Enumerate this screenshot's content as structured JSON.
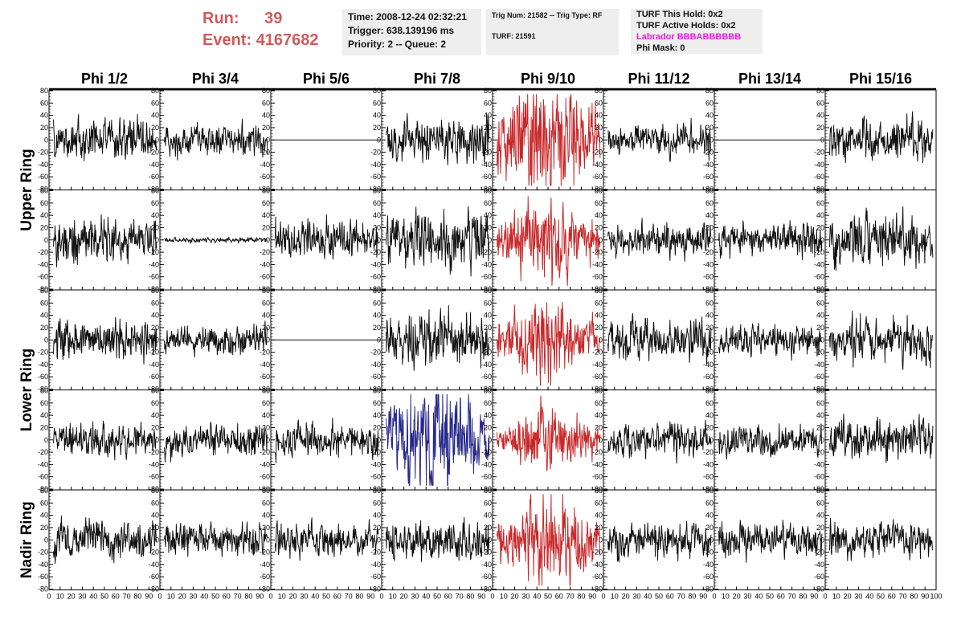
{
  "header": {
    "run_label": "Run:",
    "run_value": "39",
    "event_label": "Event:",
    "event_value": "4167682",
    "time_line": "Time: 2008-12-24 02:32:21",
    "trigger_line": "Trigger: 638.139196 ms",
    "priority_line": "Priority: 2 -- Queue: 2",
    "trig_line": "Trig Num: 21582 -- Trig Type: RF",
    "turf_line": "TURF: 21591",
    "turf_hold_line": "TURF This Hold: 0x2",
    "turf_active_line": "TURF Active Holds: 0x2",
    "labrador_line": "Labrador BBBABBBBBB",
    "phimask_line": "Phi Mask: 0"
  },
  "colors": {
    "trace_default": "#111111",
    "trace_red": "#c8282a",
    "trace_blue": "#28288c",
    "run_text": "#d05a5a",
    "labrador_text": "#e020e0",
    "info_box_bg": "#eeeeee"
  },
  "chart_data": {
    "type": "line",
    "columns": [
      "Phi 1/2",
      "Phi 3/4",
      "Phi 5/6",
      "Phi 7/8",
      "Phi 9/10",
      "Phi 11/12",
      "Phi 13/14",
      "Phi 15/16"
    ],
    "row_labels": [
      "Upper Ring",
      "Lower Ring",
      "Nadir Ring"
    ],
    "xlim": [
      0,
      100
    ],
    "ylim": [
      -80,
      80
    ],
    "x_ticks": [
      0,
      10,
      20,
      30,
      40,
      50,
      60,
      70,
      80,
      90,
      100
    ],
    "y_ticks": [
      -80,
      -60,
      -40,
      -20,
      0,
      20,
      40,
      60,
      80
    ],
    "panels": [
      [
        {
          "c": "k",
          "a": 15
        },
        {
          "c": "k",
          "a": 11
        },
        {
          "c": "k",
          "a": 0
        },
        {
          "c": "k",
          "a": 16
        },
        {
          "c": "r",
          "a": 30
        },
        {
          "c": "k",
          "a": 11
        },
        {
          "c": "k",
          "a": 0
        },
        {
          "c": "k",
          "a": 14
        }
      ],
      [
        {
          "c": "k",
          "a": 16
        },
        {
          "c": "k",
          "a": 2
        },
        {
          "c": "k",
          "a": 14
        },
        {
          "c": "k",
          "a": 20
        },
        {
          "c": "r",
          "a": 18
        },
        {
          "c": "k",
          "a": 12
        },
        {
          "c": "k",
          "a": 12
        },
        {
          "c": "k",
          "a": 18
        }
      ],
      [
        {
          "c": "k",
          "a": 15
        },
        {
          "c": "k",
          "a": 10
        },
        {
          "c": "k",
          "a": 0
        },
        {
          "c": "k",
          "a": 18
        },
        {
          "c": "r",
          "a": 18
        },
        {
          "c": "k",
          "a": 14
        },
        {
          "c": "k",
          "a": 12
        },
        {
          "c": "k",
          "a": 15
        }
      ],
      [
        {
          "c": "k",
          "a": 12
        },
        {
          "c": "k",
          "a": 12
        },
        {
          "c": "k",
          "a": 13
        },
        {
          "c": "b",
          "a": 28
        },
        {
          "c": "r",
          "a": 14
        },
        {
          "c": "k",
          "a": 12
        },
        {
          "c": "k",
          "a": 12
        },
        {
          "c": "k",
          "a": 14
        }
      ],
      [
        {
          "c": "k",
          "a": 14
        },
        {
          "c": "k",
          "a": 12
        },
        {
          "c": "k",
          "a": 12
        },
        {
          "c": "k",
          "a": 14
        },
        {
          "c": "r",
          "a": 22
        },
        {
          "c": "k",
          "a": 13
        },
        {
          "c": "k",
          "a": 12
        },
        {
          "c": "k",
          "a": 13
        }
      ]
    ]
  }
}
